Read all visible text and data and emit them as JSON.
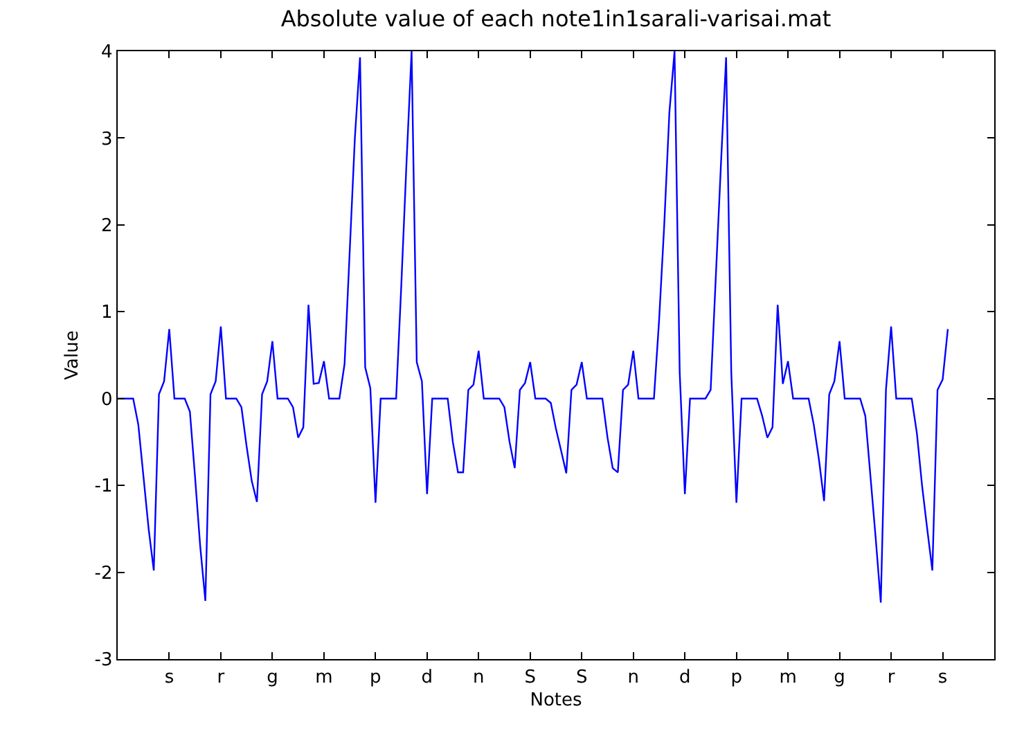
{
  "chart_data": {
    "type": "line",
    "title": "Absolute value of each note1in1sarali-varisai.mat",
    "xlabel": "Notes",
    "ylabel": "Value",
    "ylim": [
      -3,
      4
    ],
    "yticks": [
      -3,
      -2,
      -1,
      0,
      1,
      2,
      3,
      4
    ],
    "categories": [
      null,
      null,
      null,
      null,
      null,
      null,
      null,
      null,
      null,
      null,
      "s",
      null,
      null,
      null,
      null,
      null,
      null,
      null,
      null,
      null,
      "r",
      null,
      null,
      null,
      null,
      null,
      null,
      null,
      null,
      null,
      "g",
      null,
      null,
      null,
      null,
      null,
      null,
      null,
      null,
      null,
      "m",
      null,
      null,
      null,
      null,
      null,
      null,
      null,
      null,
      null,
      "p",
      null,
      null,
      null,
      null,
      null,
      null,
      null,
      null,
      null,
      "d",
      null,
      null,
      null,
      null,
      null,
      null,
      null,
      null,
      null,
      "n",
      null,
      null,
      null,
      null,
      null,
      null,
      null,
      null,
      null,
      "S",
      null,
      null,
      null,
      null,
      null,
      null,
      null,
      null,
      null,
      "S",
      null,
      null,
      null,
      null,
      null,
      null,
      null,
      null,
      null,
      "n",
      null,
      null,
      null,
      null,
      null,
      null,
      null,
      null,
      null,
      "d",
      null,
      null,
      null,
      null,
      null,
      null,
      null,
      null,
      null,
      "p",
      null,
      null,
      null,
      null,
      null,
      null,
      null,
      null,
      null,
      "m",
      null,
      null,
      null,
      null,
      null,
      null,
      null,
      null,
      null,
      "g",
      null,
      null,
      null,
      null,
      null,
      null,
      null,
      null,
      null,
      "r",
      null,
      null,
      null,
      null,
      null,
      null,
      null,
      null,
      null,
      "s",
      null,
      null,
      null,
      null,
      null,
      null,
      null,
      null,
      null,
      null
    ],
    "marker": "none",
    "line_style": "solid",
    "series": [
      {
        "color": "#0000ff",
        "values": [
          0,
          0,
          0,
          0,
          -0.3,
          -0.9,
          -1.5,
          -1.98,
          0.05,
          0.2,
          0.8,
          0,
          0,
          0,
          -0.15,
          -0.9,
          -1.7,
          -2.33,
          0.05,
          0.2,
          0.83,
          0,
          0,
          0,
          -0.1,
          -0.55,
          -0.95,
          -1.19,
          0.05,
          0.2,
          0.66,
          0,
          0,
          0,
          -0.1,
          -0.45,
          -0.33,
          1.08,
          0.17,
          0.18,
          0.43,
          0,
          0,
          0,
          0.4,
          1.7,
          3.0,
          3.93,
          0.36,
          0.12,
          -1.2,
          0,
          0,
          0,
          0,
          1.3,
          2.7,
          4.0,
          0.42,
          0.2,
          -1.1,
          0,
          0,
          0,
          0,
          -0.5,
          -0.85,
          -0.85,
          0.1,
          0.16,
          0.55,
          0,
          0,
          0,
          0,
          -0.1,
          -0.5,
          -0.8,
          0.1,
          0.18,
          0.42,
          0,
          0,
          0,
          -0.05,
          -0.35,
          -0.6,
          -0.86,
          0.1,
          0.16,
          0.42,
          0,
          0,
          0,
          0,
          -0.45,
          -0.8,
          -0.85,
          0.1,
          0.16,
          0.55,
          0,
          0,
          0,
          0,
          0.9,
          2.0,
          3.3,
          4.0,
          0.3,
          -1.1,
          0,
          0,
          0,
          0,
          0.1,
          1.4,
          2.7,
          3.93,
          0.3,
          -1.2,
          0,
          0,
          0,
          0,
          -0.2,
          -0.45,
          -0.33,
          1.08,
          0.17,
          0.43,
          0,
          0,
          0,
          0,
          -0.3,
          -0.7,
          -1.18,
          0.05,
          0.2,
          0.66,
          0,
          0,
          0,
          0,
          -0.2,
          -0.9,
          -1.6,
          -2.35,
          0.1,
          0.83,
          0,
          0,
          0,
          0,
          -0.4,
          -1.0,
          -1.5,
          -1.98,
          0.1,
          0.22,
          0.8,
          null,
          null,
          null,
          null,
          null,
          null,
          null,
          null,
          null
        ]
      }
    ]
  }
}
